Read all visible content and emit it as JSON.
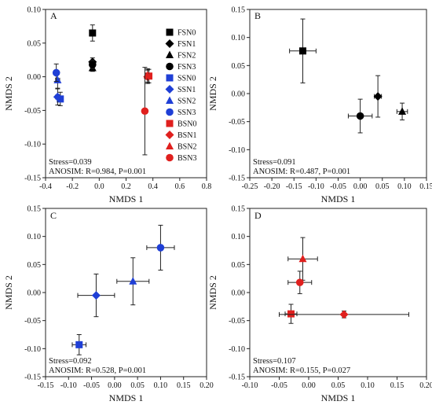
{
  "colors": {
    "FSN": "#000000",
    "SSN": "#1f3fd6",
    "BSN": "#e0201e"
  },
  "chart_data": [
    {
      "type": "scatter",
      "panel": "A",
      "xlabel": "NMDS 1",
      "ylabel": "NMDS 2",
      "xlim": [
        -0.4,
        0.8
      ],
      "ylim": [
        -0.15,
        0.1
      ],
      "xticks": [
        "-0.4",
        "-0.2",
        "0.0",
        "0.2",
        "0.4",
        "0.6",
        "0.8"
      ],
      "yticks": [
        "-0.15",
        "-0.10",
        "-0.05",
        "0.00",
        "0.05",
        "0.10"
      ],
      "legend": [
        "FSN0",
        "FSN1",
        "FSN2",
        "FSN3",
        "SSN0",
        "SSN1",
        "SSN2",
        "SSN3",
        "BSN0",
        "BSN1",
        "BSN2",
        "BSN3"
      ],
      "stress": "Stress=0.039",
      "anosim": "ANOSIM: R=0.984, P=0.001",
      "points": [
        {
          "label": "FSN0",
          "group": "FSN",
          "shape": "square",
          "x": -0.05,
          "y": 0.065,
          "xerr": 0.0,
          "yerr": 0.012
        },
        {
          "label": "FSN1",
          "group": "FSN",
          "shape": "diamond",
          "x": -0.05,
          "y": 0.022,
          "xerr": 0.0,
          "yerr": 0.006
        },
        {
          "label": "FSN2",
          "group": "FSN",
          "shape": "triangle",
          "x": -0.05,
          "y": 0.013,
          "xerr": 0.0,
          "yerr": 0.005
        },
        {
          "label": "FSN3",
          "group": "FSN",
          "shape": "circle",
          "x": -0.05,
          "y": 0.018,
          "xerr": 0.0,
          "yerr": 0.006
        },
        {
          "label": "SSN0",
          "group": "SSN",
          "shape": "square",
          "x": -0.29,
          "y": -0.033,
          "xerr": 0.02,
          "yerr": 0.01
        },
        {
          "label": "SSN1",
          "group": "SSN",
          "shape": "diamond",
          "x": -0.31,
          "y": -0.03,
          "xerr": 0.015,
          "yerr": 0.012
        },
        {
          "label": "SSN2",
          "group": "SSN",
          "shape": "triangle",
          "x": -0.31,
          "y": -0.005,
          "xerr": 0.015,
          "yerr": 0.012
        },
        {
          "label": "SSN3",
          "group": "SSN",
          "shape": "circle",
          "x": -0.32,
          "y": 0.006,
          "xerr": 0.01,
          "yerr": 0.013
        },
        {
          "label": "BSN0",
          "group": "BSN",
          "shape": "square",
          "x": 0.37,
          "y": 0.001,
          "xerr": 0.01,
          "yerr": 0.01
        },
        {
          "label": "BSN1",
          "group": "BSN",
          "shape": "diamond",
          "x": 0.36,
          "y": 0.0,
          "xerr": 0.01,
          "yerr": 0.01
        },
        {
          "label": "BSN2",
          "group": "BSN",
          "shape": "triangle",
          "x": 0.36,
          "y": 0.002,
          "xerr": 0.01,
          "yerr": 0.01
        },
        {
          "label": "BSN3",
          "group": "BSN",
          "shape": "circle",
          "x": 0.34,
          "y": -0.051,
          "xerr": 0.0,
          "yerr": 0.065
        }
      ]
    },
    {
      "type": "scatter",
      "panel": "B",
      "xlabel": "NMDS 1",
      "ylabel": "NMDS 2",
      "xlim": [
        -0.25,
        0.15
      ],
      "ylim": [
        -0.15,
        0.15
      ],
      "xticks": [
        "-0.25",
        "-0.20",
        "-0.15",
        "-0.10",
        "-0.05",
        "0.00",
        "0.05",
        "0.10",
        "0.15"
      ],
      "yticks": [
        "-0.15",
        "-0.10",
        "-0.05",
        "0.00",
        "0.05",
        "0.10",
        "0.15"
      ],
      "stress": "Stress=0.091",
      "anosim": "ANOSIM: R=0.487, P=0.001",
      "points": [
        {
          "label": "FSN0",
          "group": "FSN",
          "shape": "square",
          "x": -0.13,
          "y": 0.076,
          "xerr": 0.03,
          "yerr": 0.057
        },
        {
          "label": "FSN1",
          "group": "FSN",
          "shape": "diamond",
          "x": 0.04,
          "y": -0.005,
          "xerr": 0.008,
          "yerr": 0.037
        },
        {
          "label": "FSN2",
          "group": "FSN",
          "shape": "triangle",
          "x": 0.095,
          "y": -0.032,
          "xerr": 0.012,
          "yerr": 0.015
        },
        {
          "label": "FSN3",
          "group": "FSN",
          "shape": "circle",
          "x": 0.0,
          "y": -0.04,
          "xerr": 0.027,
          "yerr": 0.03
        }
      ]
    },
    {
      "type": "scatter",
      "panel": "C",
      "xlabel": "NMDS 1",
      "ylabel": "NMDS 2",
      "xlim": [
        -0.15,
        0.2
      ],
      "ylim": [
        -0.15,
        0.15
      ],
      "xticks": [
        "-0.15",
        "-0.10",
        "-0.05",
        "0.00",
        "0.05",
        "0.10",
        "0.15",
        "0.20"
      ],
      "yticks": [
        "-0.15",
        "-0.10",
        "-0.05",
        "0.00",
        "0.05",
        "0.10",
        "0.15"
      ],
      "stress": "Stress=0.092",
      "anosim": "ANOSIM: R=0.528, P=0.001",
      "points": [
        {
          "label": "SSN0",
          "group": "SSN",
          "shape": "square",
          "x": -0.077,
          "y": -0.093,
          "xerr": 0.015,
          "yerr": 0.018
        },
        {
          "label": "SSN1",
          "group": "SSN",
          "shape": "diamond",
          "x": -0.04,
          "y": -0.005,
          "xerr": 0.04,
          "yerr": 0.038
        },
        {
          "label": "SSN2",
          "group": "SSN",
          "shape": "triangle",
          "x": 0.04,
          "y": 0.02,
          "xerr": 0.035,
          "yerr": 0.042
        },
        {
          "label": "SSN3",
          "group": "SSN",
          "shape": "circle",
          "x": 0.1,
          "y": 0.08,
          "xerr": 0.03,
          "yerr": 0.04
        }
      ]
    },
    {
      "type": "scatter",
      "panel": "D",
      "xlabel": "NMDS 1",
      "ylabel": "NMDS 2",
      "xlim": [
        -0.1,
        0.2
      ],
      "ylim": [
        -0.15,
        0.15
      ],
      "xticks": [
        "-0.10",
        "-0.05",
        "0.00",
        "0.05",
        "0.10",
        "0.15",
        "0.20"
      ],
      "yticks": [
        "-0.15",
        "-0.10",
        "-0.05",
        "0.00",
        "0.05",
        "0.10",
        "0.15"
      ],
      "stress": "Stress=0.107",
      "anosim": "ANOSIM: R=0.155, P=0.027",
      "points": [
        {
          "label": "BSN0",
          "group": "BSN",
          "shape": "square",
          "x": -0.03,
          "y": -0.038,
          "xerr": 0.01,
          "yerr": 0.017
        },
        {
          "label": "BSN1",
          "group": "BSN",
          "shape": "diamond",
          "x": 0.06,
          "y": -0.039,
          "xerr": 0.11,
          "yerr": 0.006
        },
        {
          "label": "BSN2",
          "group": "BSN",
          "shape": "triangle",
          "x": -0.01,
          "y": 0.06,
          "xerr": 0.025,
          "yerr": 0.038
        },
        {
          "label": "BSN3",
          "group": "BSN",
          "shape": "circle",
          "x": -0.015,
          "y": 0.018,
          "xerr": 0.02,
          "yerr": 0.02
        }
      ]
    }
  ]
}
